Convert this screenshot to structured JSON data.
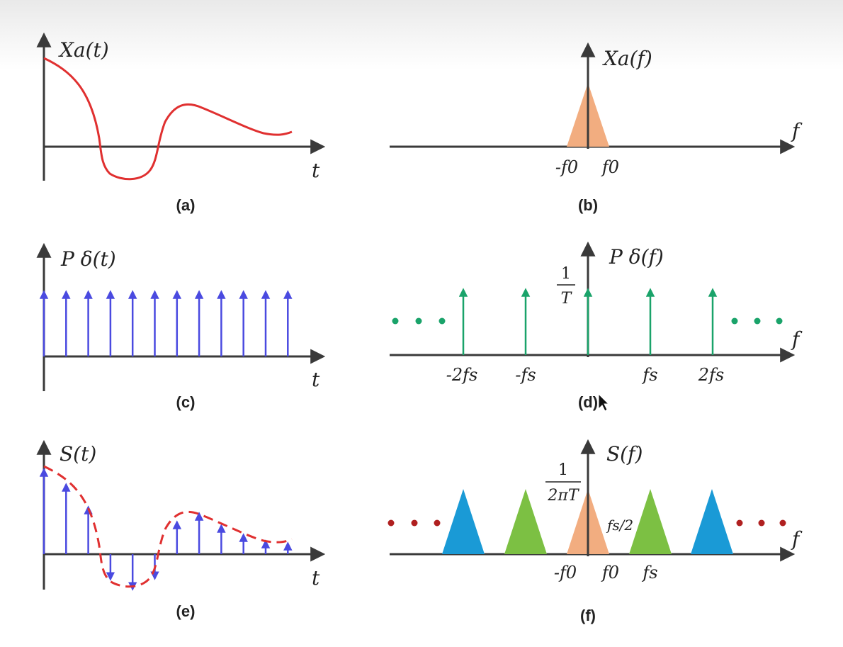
{
  "panels": {
    "a": {
      "caption": "(a)",
      "ylabel": "Xa(t)",
      "xlabel": "t"
    },
    "b": {
      "caption": "(b)",
      "ylabel": "Xa(f)",
      "xlabel": "f",
      "ticks": [
        "-f0",
        "f0"
      ]
    },
    "c": {
      "caption": "(c)",
      "ylabel": "P δ(t)",
      "xlabel": "t"
    },
    "d": {
      "caption": "(d)",
      "ylabel": "P δ(f)",
      "xlabel": "f",
      "amplitude_num": "1",
      "amplitude_den": "T",
      "ticks": [
        "-2fs",
        "-fs",
        "fs",
        "2fs"
      ]
    },
    "e": {
      "caption": "(e)",
      "ylabel": "S(t)",
      "xlabel": "t"
    },
    "f": {
      "caption": "(f)",
      "ylabel": "S(f)",
      "xlabel": "f",
      "amplitude_num": "1",
      "amplitude_den": "2πT",
      "half_label": "fs/2",
      "ticks": [
        "-f0",
        "f0",
        "fs"
      ]
    }
  },
  "colors": {
    "axis": "#3a3a3a",
    "signal": "#e03030",
    "impulse_time": "#4a4ae0",
    "impulse_freq": "#1aa36a",
    "spectrum_base": "#f2ad80",
    "spectrum_first": "#7cc043",
    "spectrum_second": "#1a9ad6",
    "dots_d": "#1aa36a",
    "dots_f": "#b02020"
  }
}
